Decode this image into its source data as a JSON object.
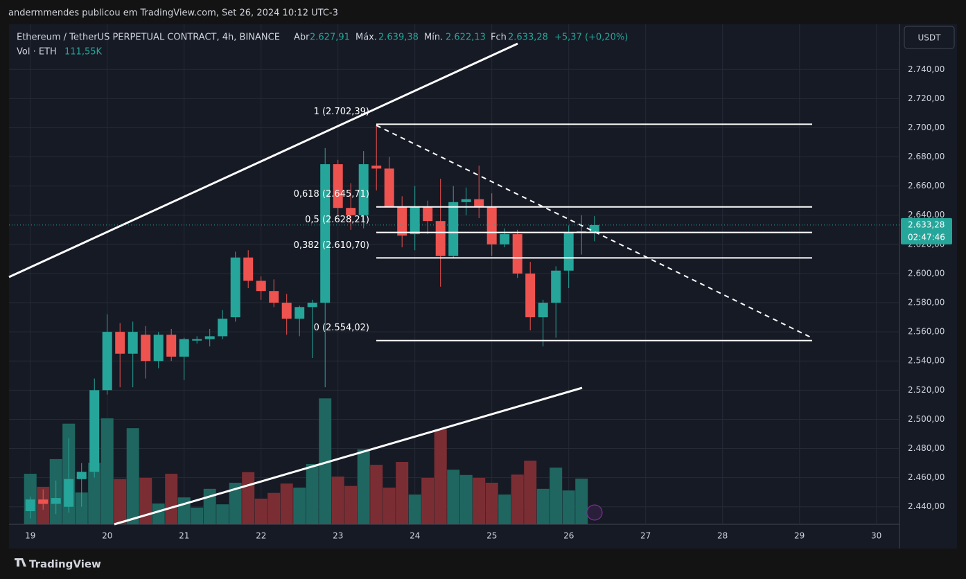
{
  "header": {
    "author": "andermmendes publicou em TradingView.com, Set 26, 2024 10:12 UTC-3",
    "symbol": "Ethereum / TetherUS PERPETUAL CONTRACT, 4h, BINANCE",
    "open_label": "Abr",
    "open": "2.627,91",
    "high_label": "Máx.",
    "high": "2.639,38",
    "low_label": "Mín.",
    "low": "2.622,13",
    "close_label": "Fch",
    "close": "2.633,28",
    "change": "+5,37 (+0,20%)",
    "vol_label": "Vol · ETH",
    "vol": "111,55K",
    "currency": "USDT",
    "brand": "TradingView"
  },
  "chart_data": {
    "type": "candlestick",
    "ylim": [
      2428,
      2771
    ],
    "yticks": [
      {
        "value": 2440,
        "label": "2.440,00"
      },
      {
        "value": 2460,
        "label": "2.460,00"
      },
      {
        "value": 2480,
        "label": "2.480,00"
      },
      {
        "value": 2500,
        "label": "2.500,00"
      },
      {
        "value": 2520,
        "label": "2.520,00"
      },
      {
        "value": 2540,
        "label": "2.540,00"
      },
      {
        "value": 2560,
        "label": "2.560,00"
      },
      {
        "value": 2580,
        "label": "2.580,00"
      },
      {
        "value": 2600,
        "label": "2.600,00"
      },
      {
        "value": 2620,
        "label": "2.620,00"
      },
      {
        "value": 2640,
        "label": "2.640,00"
      },
      {
        "value": 2660,
        "label": "2.660,00"
      },
      {
        "value": 2680,
        "label": "2.680,00"
      },
      {
        "value": 2700,
        "label": "2.700,00"
      },
      {
        "value": 2720,
        "label": "2.720,00"
      },
      {
        "value": 2740,
        "label": "2.740,00"
      }
    ],
    "xlim": [
      -1.66,
      67.8
    ],
    "xticks": [
      {
        "value": 0,
        "label": "19"
      },
      {
        "value": 6,
        "label": "20"
      },
      {
        "value": 12,
        "label": "21"
      },
      {
        "value": 18,
        "label": "22"
      },
      {
        "value": 24,
        "label": "23"
      },
      {
        "value": 30,
        "label": "24"
      },
      {
        "value": 36,
        "label": "25"
      },
      {
        "value": 42,
        "label": "26"
      },
      {
        "value": 48,
        "label": "27"
      },
      {
        "value": 54,
        "label": "28"
      },
      {
        "value": 60,
        "label": "29"
      },
      {
        "value": 66,
        "label": "30"
      }
    ],
    "grid": true,
    "up_color": "#26a69a",
    "down_color": "#ef5350",
    "open": [
      2437,
      2445,
      2442,
      2440,
      2459,
      2464,
      2520,
      2560,
      2545,
      2558,
      2540,
      2558,
      2543,
      2554,
      2555,
      2557,
      2570,
      2611,
      2595,
      2588,
      2580,
      2569,
      2577,
      2580,
      2675,
      2645,
      2640,
      2674,
      2672,
      2646,
      2627,
      2646,
      2636,
      2612,
      2649,
      2651,
      2646,
      2620,
      2627,
      2600,
      2570,
      2580,
      2602,
      2629,
      2627.91
    ],
    "high": [
      2447,
      2452,
      2458,
      2487,
      2470,
      2528,
      2572,
      2566,
      2567,
      2564,
      2560,
      2562,
      2556,
      2557,
      2562,
      2575,
      2615,
      2616,
      2598,
      2596,
      2586,
      2578,
      2582,
      2686,
      2678,
      2662,
      2684,
      2702,
      2680,
      2653,
      2660,
      2650,
      2665,
      2660,
      2659,
      2674,
      2655,
      2631,
      2630,
      2608,
      2582,
      2605,
      2633,
      2640,
      2639.38
    ],
    "low": [
      2432,
      2438,
      2435,
      2436,
      2440,
      2460,
      2517,
      2522,
      2522,
      2528,
      2535,
      2540,
      2527,
      2552,
      2550,
      2555,
      2567,
      2590,
      2582,
      2577,
      2558,
      2557,
      2542,
      2522,
      2640,
      2630,
      2631,
      2657,
      2646,
      2618,
      2616,
      2627,
      2591,
      2611,
      2640,
      2638,
      2612,
      2618,
      2597,
      2561,
      2550,
      2556,
      2590,
      2613,
      2622.13
    ],
    "close": [
      2445,
      2442,
      2446,
      2459,
      2464,
      2520,
      2560,
      2545,
      2560,
      2540,
      2558,
      2543,
      2555,
      2555,
      2557,
      2569,
      2611,
      2595,
      2588,
      2580,
      2569,
      2577,
      2580,
      2675,
      2645,
      2640,
      2675,
      2672,
      2646,
      2626,
      2646,
      2636,
      2612,
      2649,
      2651,
      2646,
      2620,
      2627,
      2600,
      2570,
      2580,
      2602,
      2628,
      2629,
      2633.28
    ],
    "volume": [
      124,
      92,
      160,
      247,
      78,
      151,
      260,
      111,
      236,
      114,
      51,
      124,
      66,
      41,
      87,
      49,
      102,
      128,
      63,
      77,
      100,
      90,
      148,
      309,
      117,
      94,
      184,
      146,
      90,
      153,
      73,
      114,
      233,
      134,
      121,
      114,
      102,
      73,
      122,
      156,
      87,
      139,
      83,
      112,
      null
    ],
    "fib": [
      {
        "label": "1 (2.702,39)",
        "price": 2702.39
      },
      {
        "label": "0,618 (2.645,71)",
        "price": 2645.71
      },
      {
        "label": "0,5 (2.628,21)",
        "price": 2628.21
      },
      {
        "label": "0,382 (2.610,70)",
        "price": 2610.7
      },
      {
        "label": "0 (2.554,02)",
        "price": 2554.02
      }
    ],
    "last_price": {
      "value": 2633.28,
      "label": "2.633,28"
    },
    "countdown": "02:47:46"
  }
}
